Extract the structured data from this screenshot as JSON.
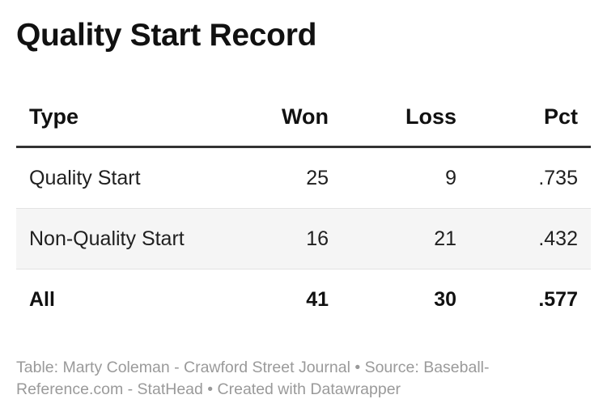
{
  "title": "Quality Start Record",
  "footer": "Table: Marty Coleman - Crawford Street Journal • Source: Baseball-Reference.com - StatHead • Created with Datawrapper",
  "chart_data": {
    "type": "table",
    "title": "Quality Start Record",
    "columns": [
      "Type",
      "Won",
      "Loss",
      "Pct"
    ],
    "rows": [
      {
        "type": "Quality Start",
        "won": "25",
        "loss": "9",
        "pct": ".735"
      },
      {
        "type": "Non-Quality Start",
        "won": "16",
        "loss": "21",
        "pct": ".432"
      },
      {
        "type": "All",
        "won": "41",
        "loss": "30",
        "pct": ".577"
      }
    ]
  }
}
